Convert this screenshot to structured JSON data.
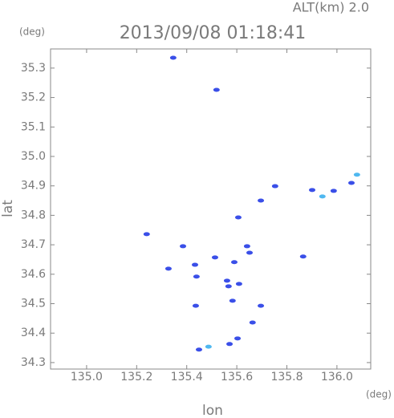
{
  "chart_data": {
    "type": "scatter",
    "altitude_label": "ALT(km) 2.0",
    "title": "2013/09/08 01:18:41",
    "y_unit": "(deg)",
    "x_unit": "(deg)",
    "ylabel": "lat",
    "xlabel": "lon",
    "xlim": [
      134.856,
      136.135
    ],
    "ylim": [
      34.278,
      35.365
    ],
    "xticks": [
      {
        "value": 135.0,
        "label": "135.0"
      },
      135.2,
      135.4,
      135.6,
      135.8,
      {
        "value": 136.0,
        "label": "136.0"
      }
    ],
    "yticks": [
      34.3,
      34.4,
      34.5,
      34.6,
      34.7,
      34.8,
      34.9,
      {
        "value": 35.0,
        "label": "35.0"
      },
      35.1,
      35.2,
      35.3
    ],
    "series": [
      {
        "color": "#3a4fe8",
        "x": [
          135.346,
          135.519,
          136.058,
          135.753,
          135.901,
          135.987,
          135.696,
          135.606,
          135.24,
          135.385,
          135.641,
          135.651,
          135.513,
          135.433,
          135.327,
          135.59,
          135.439,
          135.561,
          135.567,
          135.609,
          135.865,
          135.583,
          135.436,
          135.696,
          135.663,
          135.603,
          135.449,
          135.571
        ],
        "y": [
          35.335,
          35.226,
          34.91,
          34.899,
          34.886,
          34.883,
          34.85,
          34.793,
          34.736,
          34.695,
          34.695,
          34.673,
          34.657,
          34.632,
          34.619,
          34.641,
          34.592,
          34.578,
          34.559,
          34.567,
          34.66,
          34.51,
          34.493,
          34.493,
          34.436,
          34.382,
          34.344,
          34.363
        ]
      },
      {
        "color": "#4fb8f0",
        "x": [
          136.08,
          135.942,
          135.487
        ],
        "y": [
          34.938,
          34.864,
          34.354
        ]
      }
    ]
  }
}
